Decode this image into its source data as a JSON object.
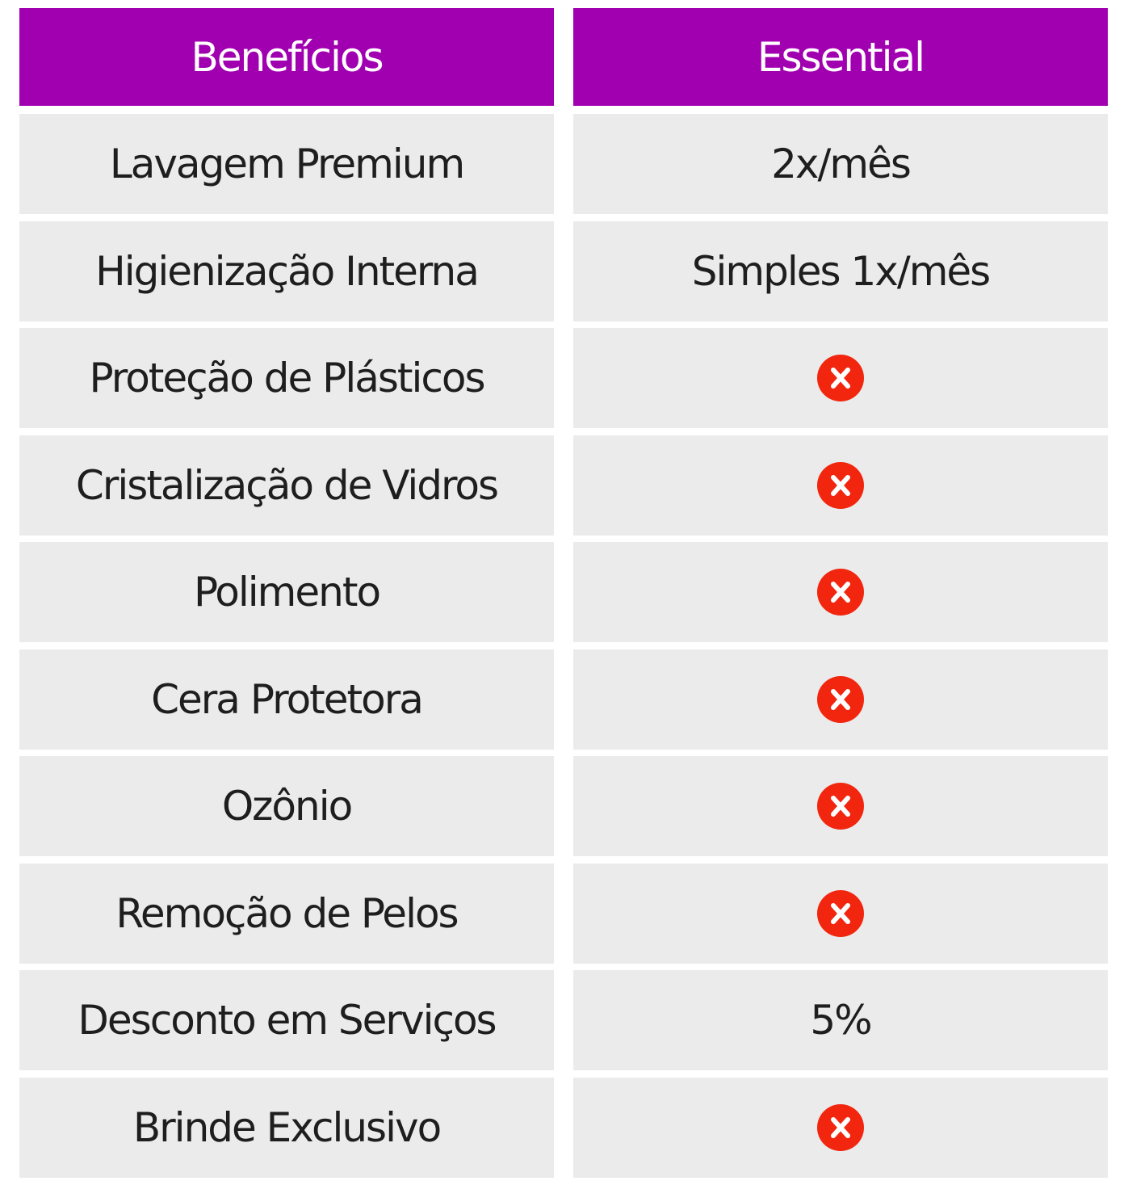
{
  "table": {
    "header": [
      "Benefícios",
      "Essential"
    ],
    "rows": [
      [
        "Lavagem Premium",
        "2x/mês"
      ],
      [
        "Higienização Interna",
        "Simples 1x/mês"
      ],
      [
        "Proteção de Plásticos",
        null
      ],
      [
        "Cristalização de Vidros",
        null
      ],
      [
        "Polimento",
        null
      ],
      [
        "Cera Protetora",
        null
      ],
      [
        "Ozônio",
        null
      ],
      [
        "Remoção de Pelos",
        null
      ],
      [
        "Desconto em Serviços",
        "5%"
      ],
      [
        "Brinde Exclusivo",
        null
      ]
    ]
  }
}
